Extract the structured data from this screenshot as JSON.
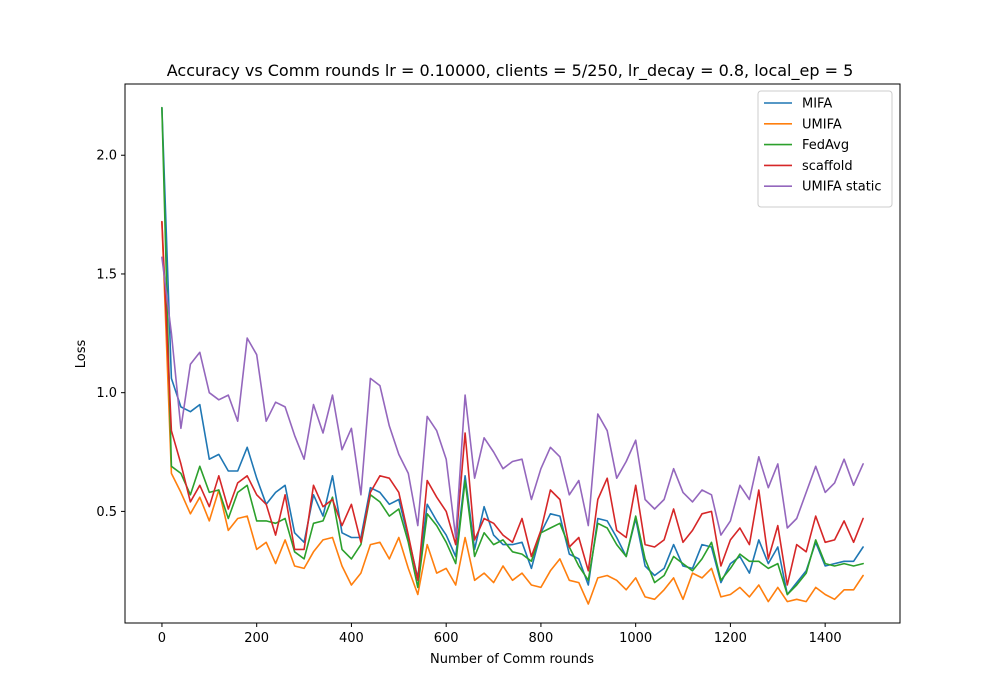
{
  "chart_data": {
    "type": "line",
    "title": "Accuracy vs Comm rounds lr = 0.10000, clients = 5/250, lr_decay = 0.8, local_ep = 5",
    "xlabel": "Number of Comm rounds",
    "ylabel": "Loss",
    "xlim": [
      -78,
      1558
    ],
    "ylim": [
      0.03,
      2.3
    ],
    "xticks": [
      0,
      200,
      400,
      600,
      800,
      1000,
      1200,
      1400
    ],
    "yticks": [
      0.5,
      1.0,
      1.5,
      2.0
    ],
    "xtick_labels": [
      "0",
      "200",
      "400",
      "600",
      "800",
      "1000",
      "1200",
      "1400"
    ],
    "ytick_labels": [
      "0.5",
      "1.0",
      "1.5",
      "2.0"
    ],
    "grid": false,
    "legend_position": "top-right",
    "x": [
      0,
      20,
      40,
      60,
      80,
      100,
      120,
      140,
      160,
      180,
      200,
      220,
      240,
      260,
      280,
      300,
      320,
      340,
      360,
      380,
      400,
      420,
      440,
      460,
      480,
      500,
      520,
      540,
      560,
      580,
      600,
      620,
      640,
      660,
      680,
      700,
      720,
      740,
      760,
      780,
      800,
      820,
      840,
      860,
      880,
      900,
      920,
      940,
      960,
      980,
      1000,
      1020,
      1040,
      1060,
      1080,
      1100,
      1120,
      1140,
      1160,
      1180,
      1200,
      1220,
      1240,
      1260,
      1280,
      1300,
      1320,
      1340,
      1360,
      1380,
      1400,
      1420,
      1440,
      1460,
      1480
    ],
    "series": [
      {
        "name": "MIFA",
        "color": "#1f77b4",
        "values": [
          2.2,
          1.06,
          0.94,
          0.92,
          0.95,
          0.72,
          0.74,
          0.67,
          0.67,
          0.77,
          0.64,
          0.53,
          0.58,
          0.61,
          0.41,
          0.37,
          0.57,
          0.48,
          0.65,
          0.41,
          0.39,
          0.39,
          0.6,
          0.58,
          0.53,
          0.55,
          0.39,
          0.22,
          0.53,
          0.46,
          0.4,
          0.31,
          0.65,
          0.34,
          0.52,
          0.4,
          0.36,
          0.36,
          0.37,
          0.26,
          0.41,
          0.49,
          0.48,
          0.32,
          0.3,
          0.19,
          0.47,
          0.46,
          0.39,
          0.31,
          0.47,
          0.27,
          0.23,
          0.26,
          0.36,
          0.27,
          0.26,
          0.36,
          0.35,
          0.2,
          0.28,
          0.31,
          0.24,
          0.38,
          0.28,
          0.35,
          0.15,
          0.2,
          0.25,
          0.37,
          0.27,
          0.28,
          0.29,
          0.29,
          0.35
        ]
      },
      {
        "name": "UMIFA",
        "color": "#ff7f0e",
        "values": [
          1.72,
          0.66,
          0.58,
          0.49,
          0.56,
          0.46,
          0.59,
          0.42,
          0.47,
          0.48,
          0.34,
          0.37,
          0.28,
          0.38,
          0.27,
          0.26,
          0.33,
          0.38,
          0.39,
          0.27,
          0.19,
          0.24,
          0.36,
          0.37,
          0.3,
          0.39,
          0.26,
          0.15,
          0.36,
          0.24,
          0.26,
          0.19,
          0.39,
          0.21,
          0.24,
          0.2,
          0.27,
          0.21,
          0.24,
          0.19,
          0.18,
          0.25,
          0.3,
          0.21,
          0.2,
          0.11,
          0.22,
          0.23,
          0.21,
          0.17,
          0.22,
          0.14,
          0.13,
          0.17,
          0.22,
          0.13,
          0.24,
          0.22,
          0.26,
          0.14,
          0.15,
          0.18,
          0.14,
          0.19,
          0.12,
          0.18,
          0.12,
          0.13,
          0.12,
          0.18,
          0.15,
          0.13,
          0.17,
          0.17,
          0.23
        ]
      },
      {
        "name": "FedAvg",
        "color": "#2ca02c",
        "values": [
          2.2,
          0.69,
          0.66,
          0.57,
          0.69,
          0.58,
          0.59,
          0.47,
          0.58,
          0.61,
          0.46,
          0.46,
          0.45,
          0.47,
          0.33,
          0.3,
          0.45,
          0.46,
          0.56,
          0.34,
          0.3,
          0.36,
          0.57,
          0.54,
          0.48,
          0.51,
          0.37,
          0.18,
          0.49,
          0.44,
          0.37,
          0.28,
          0.63,
          0.31,
          0.41,
          0.36,
          0.38,
          0.33,
          0.32,
          0.29,
          0.41,
          0.43,
          0.45,
          0.35,
          0.27,
          0.21,
          0.45,
          0.43,
          0.36,
          0.31,
          0.48,
          0.3,
          0.2,
          0.23,
          0.31,
          0.28,
          0.25,
          0.3,
          0.37,
          0.21,
          0.26,
          0.32,
          0.29,
          0.29,
          0.26,
          0.28,
          0.15,
          0.19,
          0.24,
          0.38,
          0.28,
          0.27,
          0.28,
          0.27,
          0.28
        ]
      },
      {
        "name": "scaffold",
        "color": "#d62728",
        "values": [
          1.72,
          0.84,
          0.7,
          0.54,
          0.61,
          0.52,
          0.65,
          0.51,
          0.62,
          0.65,
          0.57,
          0.53,
          0.4,
          0.57,
          0.34,
          0.34,
          0.61,
          0.52,
          0.55,
          0.44,
          0.53,
          0.37,
          0.58,
          0.65,
          0.64,
          0.58,
          0.4,
          0.21,
          0.63,
          0.56,
          0.5,
          0.36,
          0.83,
          0.38,
          0.47,
          0.45,
          0.4,
          0.37,
          0.47,
          0.31,
          0.42,
          0.59,
          0.55,
          0.35,
          0.39,
          0.25,
          0.55,
          0.64,
          0.42,
          0.39,
          0.61,
          0.36,
          0.35,
          0.38,
          0.51,
          0.37,
          0.42,
          0.49,
          0.5,
          0.27,
          0.38,
          0.43,
          0.36,
          0.59,
          0.3,
          0.44,
          0.19,
          0.36,
          0.33,
          0.48,
          0.37,
          0.38,
          0.46,
          0.37,
          0.47
        ]
      },
      {
        "name": "UMIFA static",
        "color": "#9467bd",
        "values": [
          1.57,
          1.25,
          0.85,
          1.12,
          1.17,
          1.0,
          0.97,
          0.99,
          0.88,
          1.23,
          1.16,
          0.88,
          0.96,
          0.94,
          0.82,
          0.72,
          0.95,
          0.83,
          0.99,
          0.76,
          0.85,
          0.57,
          1.06,
          1.03,
          0.86,
          0.74,
          0.66,
          0.44,
          0.9,
          0.84,
          0.72,
          0.39,
          0.99,
          0.64,
          0.81,
          0.75,
          0.68,
          0.71,
          0.72,
          0.55,
          0.68,
          0.77,
          0.73,
          0.57,
          0.63,
          0.44,
          0.91,
          0.84,
          0.64,
          0.71,
          0.8,
          0.55,
          0.51,
          0.55,
          0.68,
          0.58,
          0.54,
          0.59,
          0.57,
          0.4,
          0.46,
          0.61,
          0.55,
          0.73,
          0.6,
          0.7,
          0.43,
          0.47,
          0.58,
          0.69,
          0.58,
          0.62,
          0.72,
          0.61,
          0.7
        ]
      }
    ]
  }
}
